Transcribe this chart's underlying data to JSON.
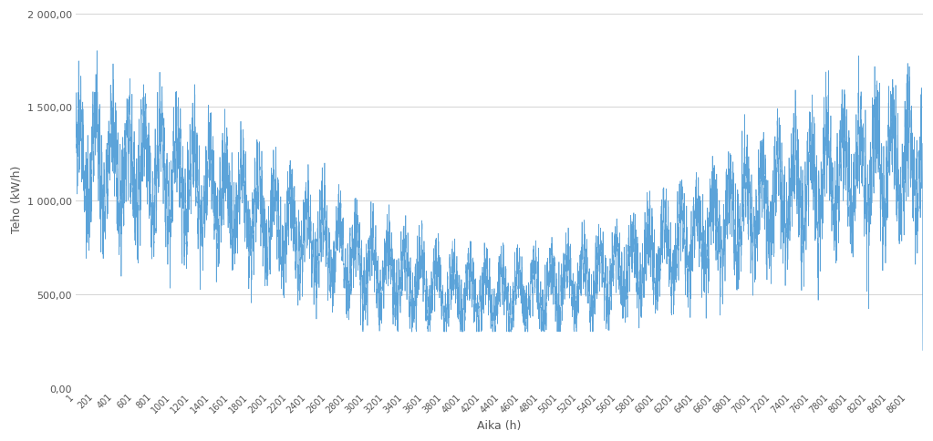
{
  "title": "",
  "xlabel": "Aika (h)",
  "ylabel": "Teho (kW/h)",
  "xlim": [
    1,
    8760
  ],
  "ylim": [
    0,
    2000
  ],
  "yticks": [
    0,
    500,
    1000,
    1500,
    2000
  ],
  "ytick_labels": [
    "0,00",
    "500,00",
    "1 000,00",
    "1 500,00",
    "2 000,00"
  ],
  "xticks": [
    1,
    201,
    401,
    601,
    801,
    1001,
    1201,
    1401,
    1601,
    1801,
    2001,
    2201,
    2401,
    2601,
    2801,
    3001,
    3201,
    3401,
    3601,
    3801,
    4001,
    4201,
    4401,
    4601,
    4801,
    5001,
    5201,
    5401,
    5601,
    5801,
    6001,
    6201,
    6401,
    6601,
    6801,
    7001,
    7201,
    7401,
    7601,
    7801,
    8001,
    8201,
    8401,
    8601
  ],
  "line_color": "#5BA3D9",
  "background_color": "#ffffff",
  "grid_color": "#d4d4d4",
  "seed": 42,
  "n_hours": 8760
}
